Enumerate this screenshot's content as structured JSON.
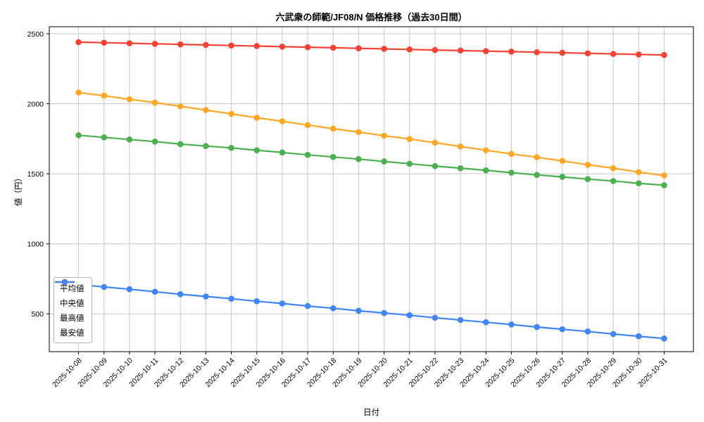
{
  "chart": {
    "title": "六武衆の師範/JF08/N 価格推移（過去30日間）",
    "xlabel": "日付",
    "ylabel": "値（円）"
  },
  "chart_data": {
    "type": "line",
    "title": "六武衆の師範/JF08/N 価格推移（過去30日間）",
    "xlabel": "日付",
    "ylabel": "値（円）",
    "grid": true,
    "legend_position": "lower-left",
    "ylim": [
      230,
      2550
    ],
    "yticks": [
      500,
      1000,
      1500,
      2000,
      2500
    ],
    "x": [
      "2025-10-08",
      "2025-10-09",
      "2025-10-10",
      "2025-10-11",
      "2025-10-12",
      "2025-10-13",
      "2025-10-14",
      "2025-10-15",
      "2025-10-16",
      "2025-10-17",
      "2025-10-18",
      "2025-10-19",
      "2025-10-20",
      "2025-10-21",
      "2025-10-22",
      "2025-10-23",
      "2025-10-24",
      "2025-10-25",
      "2025-10-26",
      "2025-10-27",
      "2025-10-28",
      "2025-10-29",
      "2025-10-30",
      "2025-10-31"
    ],
    "series": [
      {
        "name": "平均値",
        "color": "#4caf50",
        "values": [
          1775,
          1760,
          1745,
          1730,
          1712,
          1698,
          1685,
          1668,
          1652,
          1635,
          1620,
          1605,
          1588,
          1572,
          1555,
          1540,
          1525,
          1508,
          1492,
          1478,
          1462,
          1448,
          1432,
          1418
        ]
      },
      {
        "name": "中央値",
        "color": "#ffa726",
        "values": [
          2080,
          2058,
          2032,
          2008,
          1982,
          1955,
          1928,
          1900,
          1875,
          1848,
          1822,
          1798,
          1772,
          1748,
          1722,
          1695,
          1668,
          1642,
          1618,
          1592,
          1565,
          1540,
          1512,
          1488
        ]
      },
      {
        "name": "最高値",
        "color": "#f44336",
        "values": [
          2440,
          2436,
          2432,
          2428,
          2424,
          2420,
          2416,
          2412,
          2408,
          2404,
          2400,
          2396,
          2392,
          2388,
          2384,
          2380,
          2376,
          2372,
          2368,
          2364,
          2360,
          2356,
          2352,
          2348
        ]
      },
      {
        "name": "最安値",
        "color": "#4285f4",
        "values": [
          710,
          692,
          676,
          658,
          640,
          624,
          608,
          590,
          574,
          556,
          540,
          522,
          506,
          490,
          472,
          456,
          440,
          424,
          406,
          390,
          374,
          356,
          340,
          324
        ]
      }
    ],
    "styles": {
      "grid_color": "#c9c9c9",
      "spine_color": "#000000",
      "tick_label_color": "#000000"
    }
  }
}
